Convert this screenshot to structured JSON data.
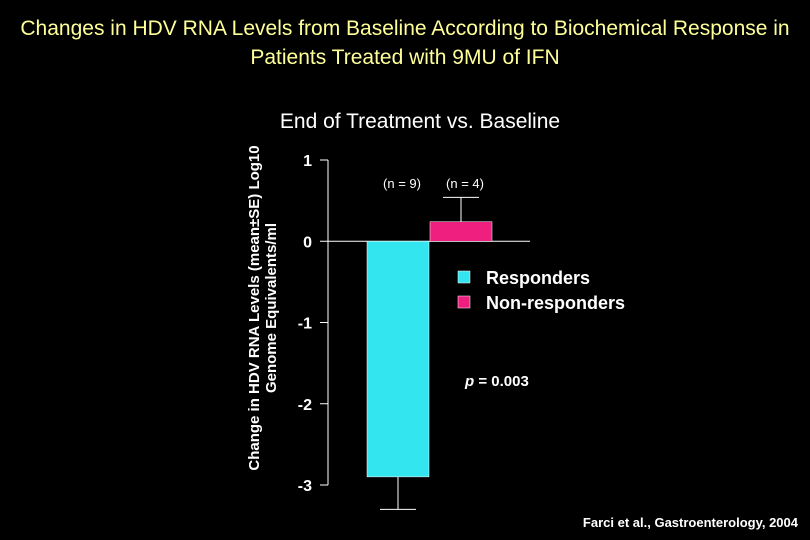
{
  "chart_data": {
    "type": "bar",
    "title": "Changes in HDV RNA Levels from Baseline According to Biochemical Response in Patients Treated with 9MU of IFN",
    "subtitle": "End of Treatment vs. Baseline",
    "ylabel": "Change in HDV RNA Levels (mean±SE) Log10 Genome Equivalents/ml",
    "ylim": [
      -3,
      1
    ],
    "yticks": [
      1,
      0,
      -1,
      -2,
      -3
    ],
    "ytick_labels": [
      "1",
      "0",
      "-1",
      "-2",
      "-3"
    ],
    "grid": false,
    "legend_position": "right",
    "series": [
      {
        "name": "Responders",
        "n_label": "(n = 9)",
        "value": -2.9,
        "se": 0.4,
        "color": "#33e5ee"
      },
      {
        "name": "Non-responders",
        "n_label": "(n = 4)",
        "value": 0.24,
        "se": 0.3,
        "color": "#ee1f7e"
      }
    ],
    "annotation": {
      "italic_part": "p",
      "text": " = 0.003"
    }
  },
  "citation": "Farci et al., Gastroenterology, 2004"
}
